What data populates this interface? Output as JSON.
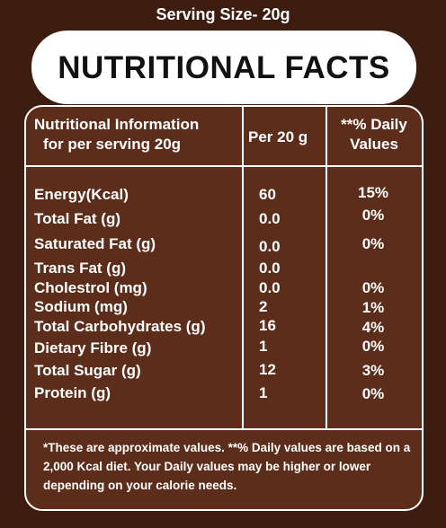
{
  "serving_size": "Serving Size- 20g",
  "title": "NUTRITIONAL FACTS",
  "headers": {
    "info_line1": "Nutritional Information",
    "info_line2": "for per serving 20g",
    "per": "Per 20 g",
    "dv_line1": "**% Daily",
    "dv_line2": "Values"
  },
  "rows": [
    {
      "label": "Energy(Kcal)",
      "value": "60",
      "dv": "15%"
    },
    {
      "label": "Total Fat (g)",
      "value": "0.0",
      "dv": "0%"
    },
    {
      "label": "Saturated Fat (g)",
      "value": "0.0",
      "dv": "0%"
    },
    {
      "label": "Trans Fat (g)",
      "value": "0.0",
      "dv": ""
    },
    {
      "label": "Cholestrol (mg)",
      "value": "0.0",
      "dv": "0%"
    },
    {
      "label": "Sodium (mg)",
      "value": "2",
      "dv": "1%"
    },
    {
      "label": "Total Carbohydrates (g)",
      "value": "16",
      "dv": "4%"
    },
    {
      "label": "Dietary Fibre (g)",
      "value": "1",
      "dv": "0%"
    },
    {
      "label": "Total Sugar (g)",
      "value": "12",
      "dv": "3%"
    },
    {
      "label": "Protein (g)",
      "value": "1",
      "dv": "0%"
    }
  ],
  "footnote": "*These are approximate values.  **% Daily values are based on a 2,000 Kcal diet. Your Daily values may be higher or lower depending on your calorie needs.",
  "colors": {
    "background": "#3d1d0f",
    "panel": "#5b2d1a",
    "text": "#ffffff"
  }
}
